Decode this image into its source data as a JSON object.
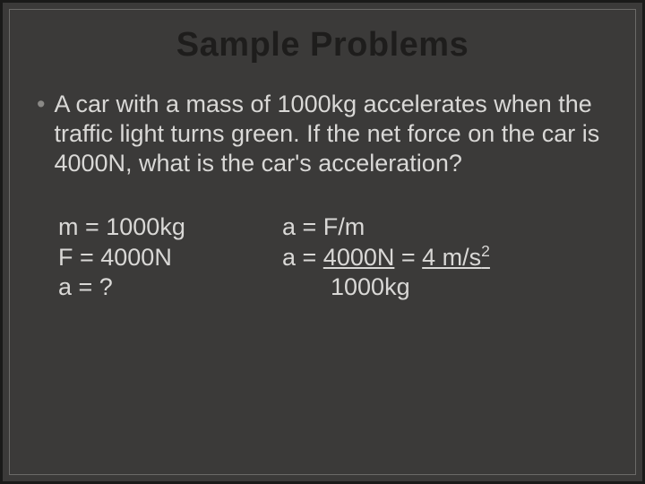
{
  "slide": {
    "title": "Sample Problems",
    "bullet_marker": "•",
    "problem_text": "A car with a mass of 1000kg accelerates when the traffic light turns green. If the net force on the car is 4000N, what is the car's acceleration?",
    "given": {
      "line1": "m = 1000kg",
      "line2": "F = 4000N",
      "line3": "a = ?"
    },
    "solution": {
      "line1": "a = F/m",
      "line2_pre": "a = ",
      "line2_num": "4000N",
      "line2_mid": " = ",
      "line2_ans": "4 m/s",
      "line2_sup": "2",
      "line3": "1000kg"
    }
  },
  "style": {
    "background_color": "#3b3a39",
    "text_color": "#d9d8d6",
    "title_color": "#1e1d1c",
    "bullet_color": "#8a8986",
    "outer_border_color": "#1a1a19",
    "inner_border_color": "#6b6a68",
    "title_fontsize": 38,
    "body_fontsize": 27
  }
}
